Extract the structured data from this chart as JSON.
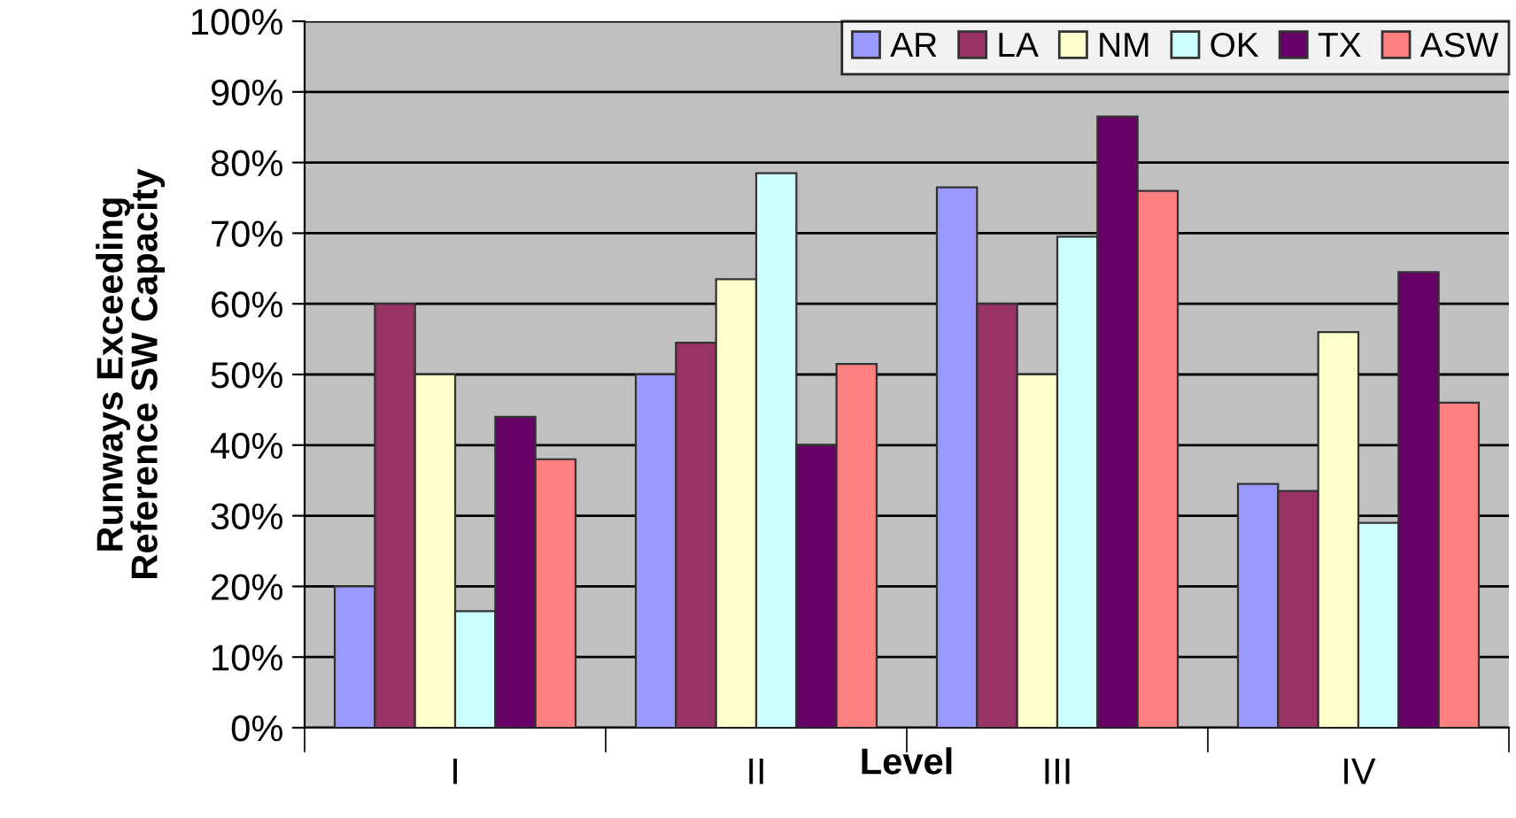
{
  "chart_data": {
    "type": "bar",
    "xlabel": "Level",
    "ylabel": "Runways Exceeding\nReference SW Capacity",
    "categories": [
      "I",
      "II",
      "III",
      "IV"
    ],
    "series": [
      {
        "name": "AR",
        "color": "#9999ff",
        "values": [
          20,
          50,
          76.5,
          34.5
        ]
      },
      {
        "name": "LA",
        "color": "#993366",
        "values": [
          60,
          54.5,
          60,
          33.5
        ]
      },
      {
        "name": "NM",
        "color": "#ffffcc",
        "values": [
          50,
          63.5,
          50,
          56
        ]
      },
      {
        "name": "OK",
        "color": "#ccffff",
        "values": [
          16.5,
          78.5,
          69.5,
          29
        ]
      },
      {
        "name": "TX",
        "color": "#660066",
        "values": [
          44,
          40,
          86.5,
          64.5
        ]
      },
      {
        "name": "ASW",
        "color": "#ff8080",
        "values": [
          38,
          51.5,
          76,
          46
        ]
      }
    ],
    "ylim": [
      0,
      100
    ],
    "yticks": [
      {
        "value": 0,
        "label": "0%"
      },
      {
        "value": 10,
        "label": "10%"
      },
      {
        "value": 20,
        "label": "20%"
      },
      {
        "value": 30,
        "label": "30%"
      },
      {
        "value": 40,
        "label": "40%"
      },
      {
        "value": 50,
        "label": "50%"
      },
      {
        "value": 60,
        "label": "60%"
      },
      {
        "value": 70,
        "label": "70%"
      },
      {
        "value": 80,
        "label": "80%"
      },
      {
        "value": 90,
        "label": "90%"
      },
      {
        "value": 100,
        "label": "100%"
      }
    ],
    "grid": "y",
    "legend": "top right"
  }
}
